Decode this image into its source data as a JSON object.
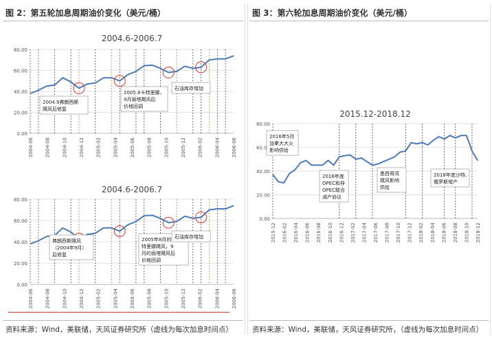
{
  "panels": {
    "left_title": "图 2：第五轮加息周期油价变化（美元/桶）",
    "right_title": "图 3：第六轮加息周期油价变化（美元/桶）",
    "left_source": "资料来源：Wind，美联储，天风证券研究所（虚线为每次加息时间点）",
    "right_source": "资料来源：Wind，美联储，天风证券研究所，（虚线为每次加息时间点）"
  },
  "chart_data": [
    {
      "type": "line",
      "title": "2004.6-2006.7",
      "ylim": [
        0,
        80
      ],
      "yticks": [
        "0.00",
        "20.00",
        "40.00",
        "60.00",
        "80.00"
      ],
      "x_labels": [
        "2004-06",
        "2004-08",
        "2004-10",
        "2004-12",
        "2005-02",
        "2005-04",
        "2005-06",
        "2005-08",
        "2005-10",
        "2005-12",
        "2006-02",
        "2006-04",
        "2006-06"
      ],
      "series": [
        {
          "values": [
            38,
            41,
            45,
            46,
            53,
            49,
            43,
            47,
            48,
            53,
            53,
            50,
            56,
            59,
            64.5,
            65,
            62,
            58,
            59,
            64,
            62,
            63,
            70,
            71,
            71,
            74
          ]
        }
      ],
      "hike_dashes_at": [
        0,
        1,
        3,
        5,
        6,
        8,
        10,
        11,
        13,
        14,
        16,
        18,
        20,
        21,
        23,
        24
      ],
      "highlight_dashes_at": [
        6,
        10,
        18,
        22
      ],
      "circles_at": [
        6,
        11,
        17,
        21
      ],
      "annotations": [
        {
          "text": [
            "2004.9弗朗西斯",
            "飓风后修复"
          ]
        },
        {
          "text": [
            "2005.8卡特里娜、",
            "9月丽塔飓风后",
            "价格回调"
          ]
        },
        {
          "text": [
            "石油库存增加"
          ]
        }
      ],
      "grid": true
    },
    {
      "type": "line",
      "title": "2004.6-2006.7",
      "ylim": [
        0,
        80
      ],
      "yticks": [
        "0.00",
        "20.00",
        "40.00",
        "60.00",
        "80.00"
      ],
      "x_labels": [
        "2004-06",
        "2004-08",
        "2004-10",
        "2004-12",
        "2005-02",
        "2005-04",
        "2005-06",
        "2005-08",
        "2005-10",
        "2005-12",
        "2006-02",
        "2006-04",
        "2006-06"
      ],
      "series": [
        {
          "values": [
            38,
            41,
            45,
            46,
            53,
            49,
            43,
            47,
            48,
            53,
            53,
            50,
            56,
            59,
            64.5,
            65,
            62,
            58,
            59,
            64,
            62,
            63,
            70,
            71,
            71,
            74
          ]
        }
      ],
      "hike_dashes_at": [
        0,
        1,
        3,
        5,
        6,
        8,
        10,
        11,
        13,
        14,
        16,
        18,
        20,
        21,
        23,
        24
      ],
      "highlight_dashes_at": [
        6,
        10,
        18,
        22
      ],
      "circles_at": [
        6,
        11,
        17,
        21
      ],
      "annotations": [
        {
          "text": [
            "弗朗西斯飓风",
            "（2004年9月）",
            "后修复"
          ]
        },
        {
          "text": [
            "2005年8月的卡",
            "特里娜飓风，9",
            "月的丽塔飓风后",
            "价格回调"
          ]
        },
        {
          "text": [
            "石油库存增加"
          ]
        }
      ],
      "grid": true
    },
    {
      "type": "line",
      "title": "2015.12-2018.12",
      "ylim": [
        0,
        80
      ],
      "yticks": [
        "0.00",
        "20.00",
        "40.00",
        "60.00",
        "80.00"
      ],
      "x_labels": [
        "2015-12",
        "2016-02",
        "2016-04",
        "2016-06",
        "2016-08",
        "2016-10",
        "2016-12",
        "2017-02",
        "2017-04",
        "2017-06",
        "2017-08",
        "2017-10",
        "2017-12",
        "2018-02",
        "2018-04",
        "2018-06",
        "2018-08",
        "2018-10",
        "2018-12"
      ],
      "series": [
        {
          "values": [
            37,
            31,
            30,
            38,
            41,
            47,
            49,
            45,
            45,
            45,
            49,
            45,
            52,
            53,
            53.5,
            50,
            51,
            48,
            45,
            46,
            48,
            50,
            52,
            56,
            57,
            64,
            63,
            64,
            62,
            66,
            69,
            67,
            70,
            68,
            70,
            70,
            57,
            49
          ]
        }
      ],
      "hike_dashes_at": [
        0,
        12,
        15,
        18,
        24,
        27,
        31,
        33,
        36
      ],
      "annotations": [
        {
          "text": [
            "2016年5月",
            "加拿大大火",
            "影响供给"
          ]
        },
        {
          "text": [
            "2016年底",
            "OPEC和非",
            "OPEC联合",
            "减产协议"
          ]
        },
        {
          "text": [
            "墨西哥湾",
            "飓风影响",
            "供给"
          ]
        },
        {
          "text": [
            "2018年底沙特、",
            "俄罗斯增产"
          ]
        }
      ],
      "grid": true
    }
  ]
}
